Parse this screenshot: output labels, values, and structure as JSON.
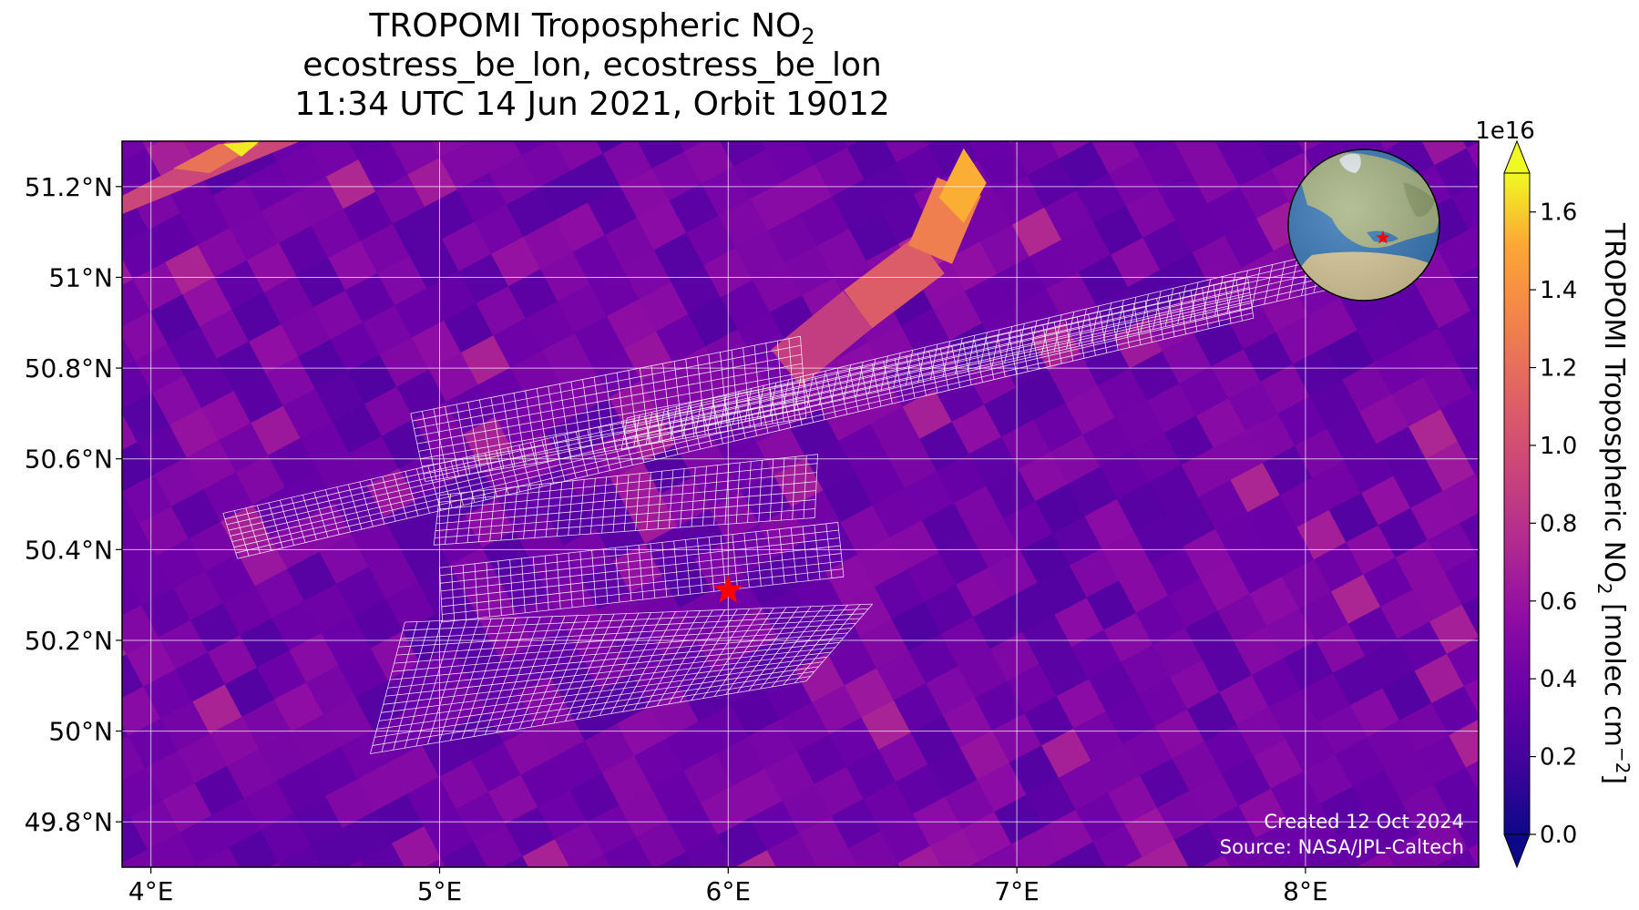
{
  "title": {
    "line1_main": "TROPOMI Tropospheric NO",
    "line1_sub": "2",
    "line2": "ecostress_be_lon, ecostress_be_lon",
    "line3": "11:34 UTC 14 Jun 2021, Orbit 19012"
  },
  "map": {
    "lon_range": [
      3.9,
      8.6
    ],
    "lat_range": [
      49.7,
      51.3
    ],
    "lon_ticks": [
      4,
      5,
      6,
      7,
      8
    ],
    "lon_tick_labels": [
      "4°E",
      "5°E",
      "6°E",
      "7°E",
      "8°E"
    ],
    "lat_ticks": [
      49.8,
      50.0,
      50.2,
      50.4,
      50.6,
      50.8,
      51.0,
      51.2
    ],
    "lat_tick_labels": [
      "49.8°N",
      "50°N",
      "50.2°N",
      "50.4°N",
      "50.6°N",
      "50.8°N",
      "51°N",
      "51.2°N"
    ],
    "grid": true,
    "target_marker": {
      "lon": 6.0,
      "lat": 50.31,
      "color": "#ff0000",
      "shape": "star"
    },
    "inset_globe_marker": {
      "lon": 6.0,
      "lat": 50.3,
      "color": "#ff0000",
      "shape": "star"
    },
    "plume": [
      {
        "lon": 6.2,
        "lat": 50.8
      },
      {
        "lon": 6.45,
        "lat": 50.93
      },
      {
        "lon": 6.7,
        "lat": 51.05
      },
      {
        "lon": 6.8,
        "lat": 51.2
      }
    ]
  },
  "colorbar": {
    "label_main": "TROPOMI Tropospheric NO",
    "label_sub": "2",
    "label_units": " [molec cm",
    "label_exp": "−2",
    "label_close": "]",
    "multiplier": "1e16",
    "range": [
      0.0,
      1.7
    ],
    "ticks": [
      0.0,
      0.2,
      0.4,
      0.6,
      0.8,
      1.0,
      1.2,
      1.4,
      1.6
    ],
    "tick_labels": [
      "0.0",
      "0.2",
      "0.4",
      "0.6",
      "0.8",
      "1.0",
      "1.2",
      "1.4",
      "1.6"
    ],
    "colormap": "plasma",
    "extend": "both"
  },
  "credits": {
    "created": "Created 12 Oct 2024",
    "source": "Source: NASA/JPL-Caltech"
  },
  "colors": {
    "background_low": "#4a0fa0",
    "gridline": "#ffffff",
    "swath_outline": "#ffffff",
    "ocean": "#3a7ab8"
  }
}
